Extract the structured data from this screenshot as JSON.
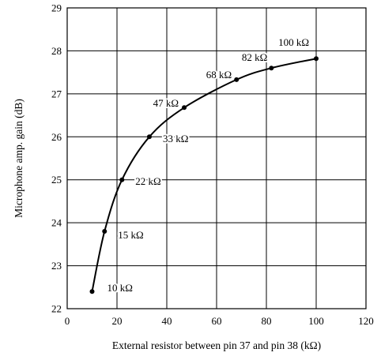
{
  "chart_data": {
    "type": "line",
    "title": "",
    "xlabel": "External resistor between pin 37 and pin 38  (kΩ)",
    "ylabel": "Microphone amp. gain  (dB)",
    "xlim": [
      0,
      120
    ],
    "ylim": [
      22,
      29
    ],
    "xticks": [
      0,
      20,
      40,
      60,
      80,
      100,
      120
    ],
    "yticks": [
      22,
      23,
      24,
      25,
      26,
      27,
      28,
      29
    ],
    "grid": true,
    "series": [
      {
        "x": [
          10,
          15,
          22,
          33,
          47,
          68,
          82,
          100
        ],
        "y": [
          22.4,
          23.8,
          25.0,
          26.0,
          26.68,
          27.33,
          27.6,
          27.82
        ],
        "labels": [
          "10 kΩ",
          "15 kΩ",
          "22 kΩ",
          "33 kΩ",
          "47 kΩ",
          "68 kΩ",
          "82 kΩ",
          "100 kΩ"
        ]
      }
    ],
    "line_color": "#000000"
  }
}
